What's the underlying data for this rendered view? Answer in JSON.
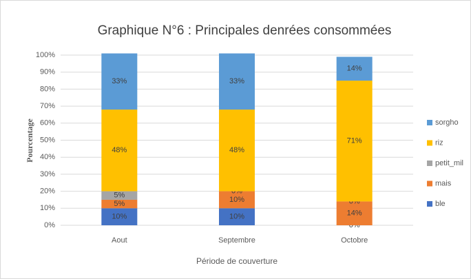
{
  "chart_data": {
    "type": "stacked_bar",
    "title": "Graphique N°6 : Principales denrées consommées",
    "x_label": "Période de couverture",
    "y_label": "Pourcentage",
    "categories": [
      "Aout",
      "Septembre",
      "Octobre"
    ],
    "series": [
      {
        "name": "ble",
        "color": "#4472c4",
        "values": [
          10,
          10,
          0
        ],
        "value_labels": [
          "10%",
          "10%",
          "0%"
        ]
      },
      {
        "name": "mais",
        "color": "#ed7d31",
        "values": [
          5,
          10,
          14
        ],
        "value_labels": [
          "5%",
          "10%",
          "14%"
        ]
      },
      {
        "name": "petit_mil",
        "color": "#a5a5a5",
        "values": [
          5,
          0,
          0
        ],
        "value_labels": [
          "5%",
          "0%",
          "0%"
        ]
      },
      {
        "name": "riz",
        "color": "#ffc000",
        "values": [
          48,
          48,
          71
        ],
        "value_labels": [
          "48%",
          "48%",
          "71%"
        ]
      },
      {
        "name": "sorgho",
        "color": "#5b9bd5",
        "values": [
          33,
          33,
          14
        ],
        "value_labels": [
          "33%",
          "33%",
          "14%"
        ]
      }
    ],
    "ylim": [
      0,
      100
    ],
    "yticks": [
      {
        "value": 0,
        "label": "0%"
      },
      {
        "value": 10,
        "label": "10%"
      },
      {
        "value": 20,
        "label": "20%"
      },
      {
        "value": 30,
        "label": "30%"
      },
      {
        "value": 40,
        "label": "40%"
      },
      {
        "value": 50,
        "label": "50%"
      },
      {
        "value": 60,
        "label": "60%"
      },
      {
        "value": 70,
        "label": "70%"
      },
      {
        "value": 80,
        "label": "80%"
      },
      {
        "value": 90,
        "label": "90%"
      },
      {
        "value": 100,
        "label": "100%"
      }
    ],
    "grid": true,
    "legend": "right"
  }
}
